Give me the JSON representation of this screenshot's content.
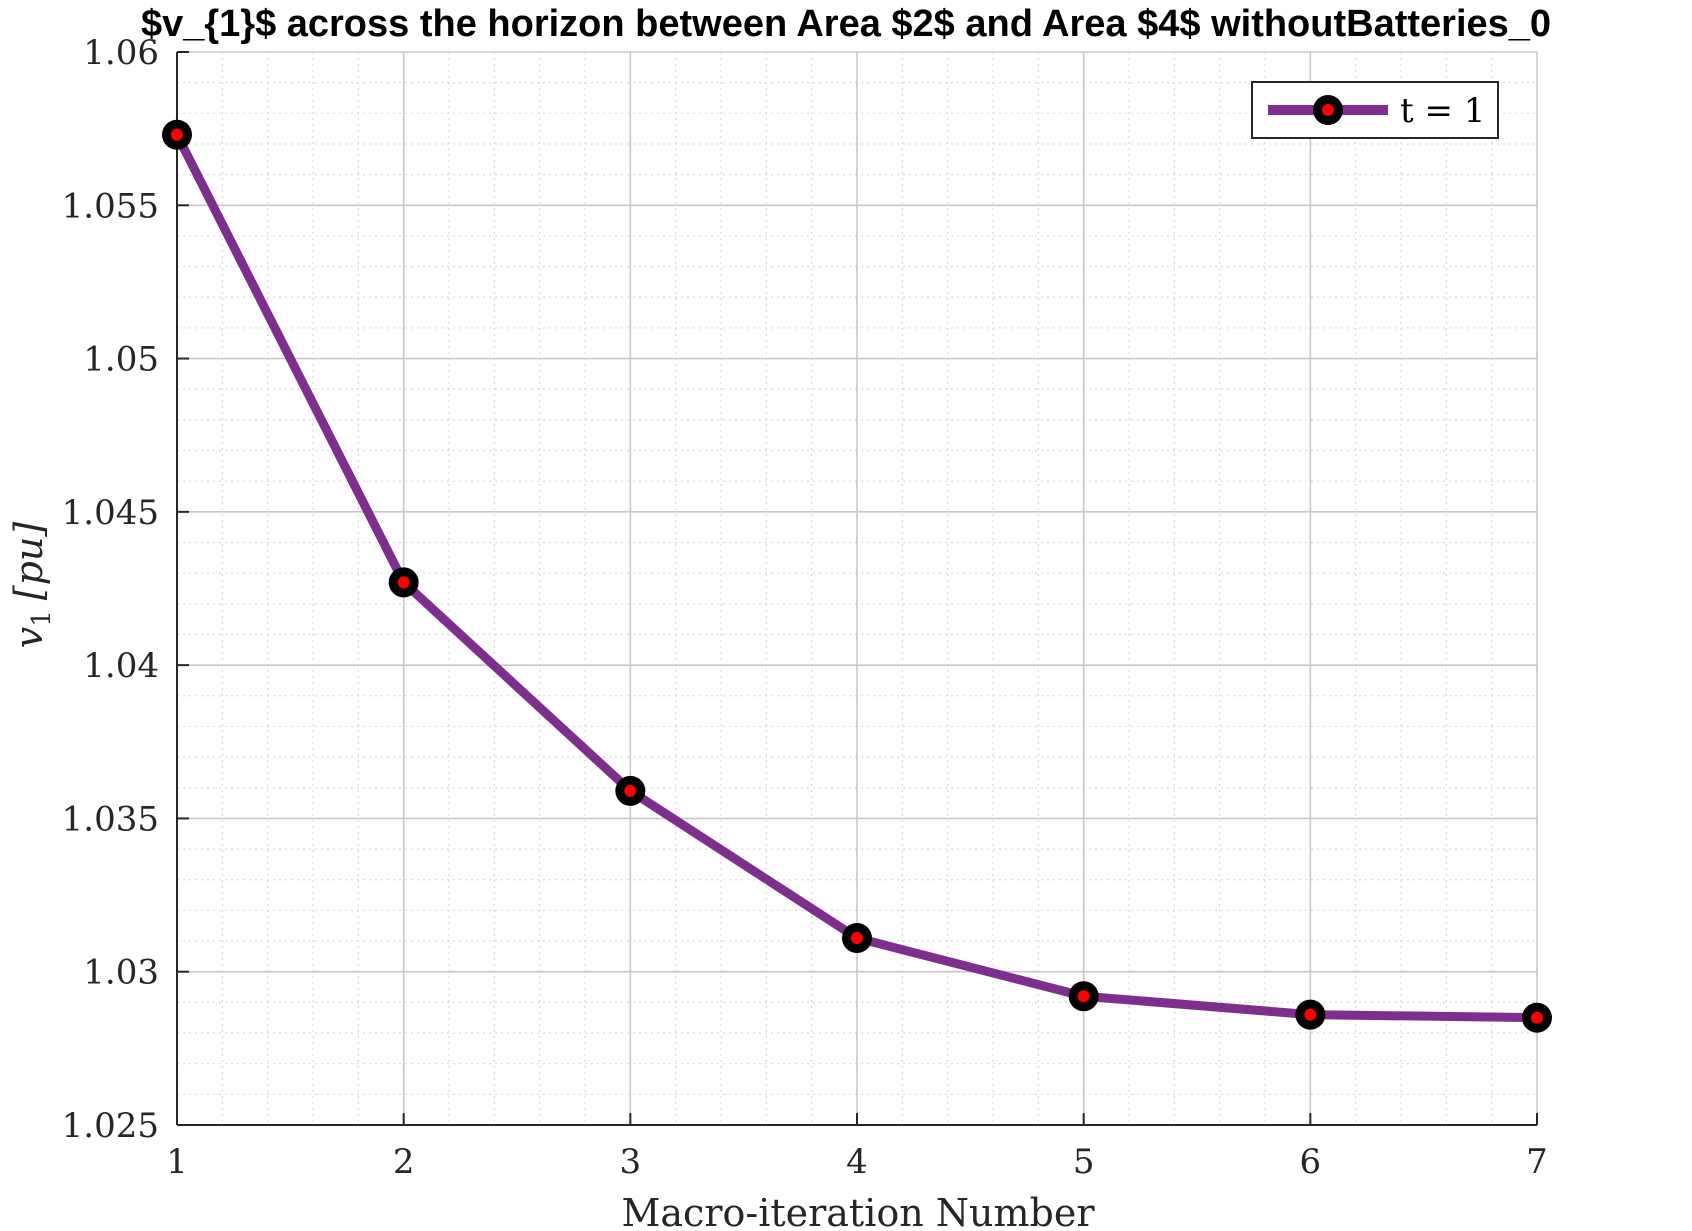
{
  "chart_data": {
    "type": "line",
    "title": "$v_{1}$ across the horizon between Area $2$ and Area $4$ withoutBatteries_0",
    "xlabel": "Macro-iteration Number",
    "ylabel_main": "v",
    "ylabel_sub": "1",
    "ylabel_unit": "[pu]",
    "xlim": [
      1,
      7
    ],
    "ylim": [
      1.025,
      1.06
    ],
    "x_ticks": [
      1,
      2,
      3,
      4,
      5,
      6,
      7
    ],
    "y_ticks": [
      1.025,
      1.03,
      1.035,
      1.04,
      1.045,
      1.05,
      1.055,
      1.06
    ],
    "grid": true,
    "minor_grid": true,
    "legend_position": "top-right",
    "series": [
      {
        "name": "t = 1",
        "x": [
          1,
          2,
          3,
          4,
          5,
          6,
          7
        ],
        "values": [
          1.0573,
          1.0427,
          1.0359,
          1.0311,
          1.0292,
          1.0286,
          1.0285
        ]
      }
    ],
    "colors": {
      "line": "#7e2f8e",
      "marker_edge": "#000000",
      "marker_face": "#ff0000",
      "grid": "#d9d9d9",
      "axis": "#262626"
    }
  }
}
